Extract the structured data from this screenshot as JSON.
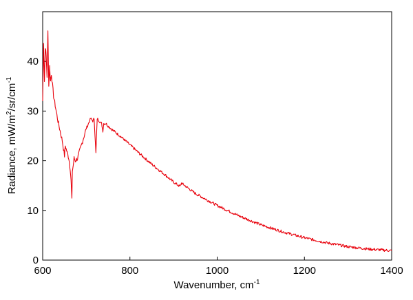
{
  "chart_data": {
    "type": "line",
    "title": "",
    "xlabel": "Wavenumber, cm",
    "xlabel_sup": "-1",
    "ylabel_parts": [
      "Radiance, mW/m",
      "2",
      "/sr/cm",
      "-1"
    ],
    "xlim": [
      600,
      1400
    ],
    "ylim": [
      0,
      50
    ],
    "xticks": [
      600,
      800,
      1000,
      1200,
      1400
    ],
    "yticks": [
      0,
      10,
      20,
      30,
      40
    ],
    "grid": false,
    "legend": "none",
    "line_color": "#e8000b",
    "series": [
      {
        "x": [
          600,
          602,
          604,
          606,
          608,
          610,
          612,
          614,
          616,
          618,
          620,
          625,
          630,
          635,
          640,
          645,
          650,
          652,
          655,
          660,
          663,
          665,
          667,
          668,
          670,
          672,
          675,
          680,
          690,
          700,
          705,
          710,
          715,
          718,
          720,
          722,
          725,
          730,
          735,
          738,
          740,
          745,
          750,
          760,
          780,
          800,
          820,
          850,
          880,
          900,
          915,
          918,
          950,
          1000,
          1050,
          1100,
          1150,
          1200,
          1250,
          1300,
          1350,
          1400
        ],
        "y": [
          32,
          44,
          36,
          43,
          41,
          37,
          46,
          35,
          39,
          36,
          37.5,
          33,
          30.5,
          28,
          26,
          24,
          21,
          23,
          22,
          20.5,
          18.5,
          16,
          12,
          18,
          19,
          20.5,
          20,
          20.5,
          23.5,
          26.5,
          27.5,
          28.5,
          28,
          28.5,
          25,
          21.5,
          28.5,
          28,
          27.5,
          26,
          27.5,
          27.5,
          27,
          26.2,
          24.8,
          23.2,
          21.6,
          19.3,
          17.2,
          15.7,
          14.8,
          15.5,
          13.4,
          11,
          8.9,
          7.1,
          5.7,
          4.5,
          3.5,
          2.7,
          2.2,
          1.9
        ]
      }
    ]
  }
}
